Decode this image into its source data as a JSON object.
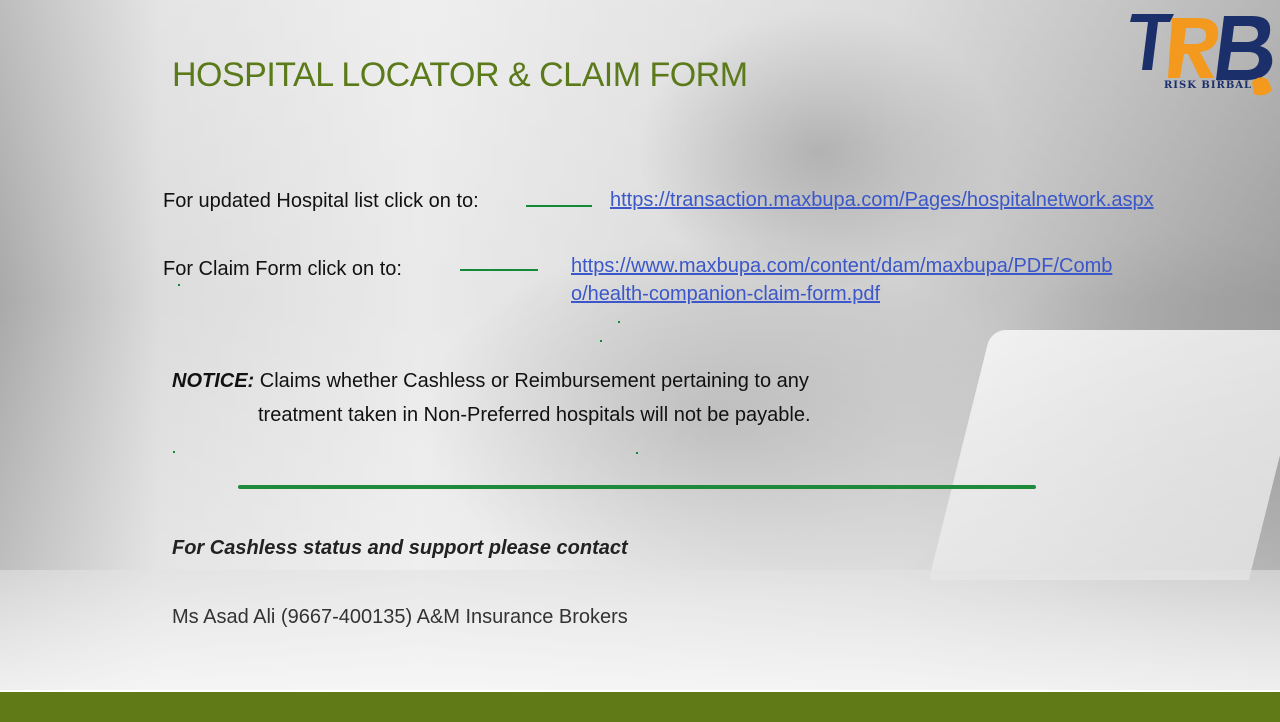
{
  "slide": {
    "title": "HOSPITAL LOCATOR & CLAIM FORM",
    "logo_text": "RISK BIRBAL",
    "hospital_list": {
      "label": "For updated Hospital list click on to:",
      "link": "https://transaction.maxbupa.com/Pages/hospitalnetwork.aspx"
    },
    "claim_form": {
      "label": "For Claim Form click on to:",
      "link_line1": "https://www.maxbupa.com/content/dam/maxbupa/PDF/Comb",
      "link_line2": "o/health-companion-claim-form.pdf"
    },
    "notice": {
      "heading": "NOTICE:",
      "text_line1": "Claims whether Cashless or Reimbursement pertaining to any",
      "text_line2": "treatment taken in Non-Preferred hospitals will not be payable."
    },
    "support_heading": "For Cashless status and support please contact",
    "contact": "Ms Asad Ali (9667-400135)  A&M Insurance Brokers"
  },
  "colors": {
    "title": "#5b7a1a",
    "link": "#3b57c9",
    "accent_green": "#138a3a",
    "footer_band": "#5f7a16",
    "logo_navy": "#1b2f6b",
    "logo_orange": "#f39a1e"
  }
}
